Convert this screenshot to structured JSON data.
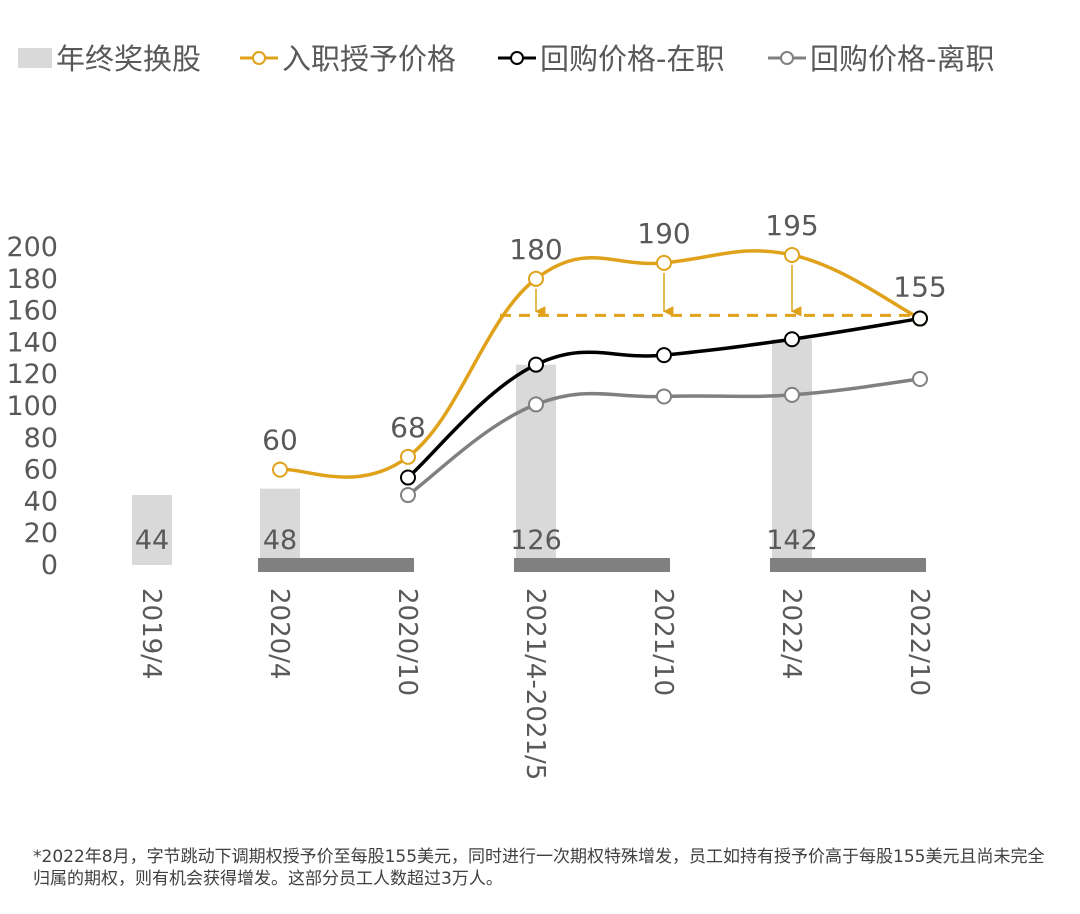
{
  "chart_data": {
    "type": "bar",
    "categories": [
      "2019/4",
      "2020/4",
      "2020/10",
      "2021/4-2021/5",
      "2021/10",
      "2022/4",
      "2022/10"
    ],
    "ylim": [
      0,
      200
    ],
    "yticks": [
      0,
      20,
      40,
      60,
      80,
      100,
      120,
      140,
      160,
      180,
      200
    ],
    "bar_series": {
      "name": "年终奖换股",
      "color": "#d9d9d9",
      "values": [
        44,
        48,
        null,
        126,
        null,
        142,
        null
      ]
    },
    "series": [
      {
        "name": "入职授予价格",
        "color": "#e0a21a",
        "values": [
          null,
          60,
          68,
          180,
          190,
          195,
          155
        ]
      },
      {
        "name": "回购价格-在职",
        "color": "#000000",
        "values": [
          null,
          null,
          55,
          126,
          132,
          142,
          155
        ]
      },
      {
        "name": "回购价格-离职",
        "color": "#808080",
        "values": [
          null,
          null,
          44,
          101,
          106,
          107,
          117
        ]
      }
    ],
    "grant_labels": [
      "60",
      "68",
      "180",
      "190",
      "195",
      "155"
    ],
    "reference_line": {
      "value": 157,
      "color": "#e0a21a",
      "style": "dashed"
    },
    "period_bars": {
      "color": "#808080"
    },
    "grid": false,
    "legend_position": "top"
  },
  "footnote": "*2022年8月，字节跳动下调期权授予价至每股155美元，同时进行一次期权特殊增发，员工如持有授予价高于每股155美元且尚未完全归属的期权，则有机会获得增发。这部分员工人数超过3万人。"
}
